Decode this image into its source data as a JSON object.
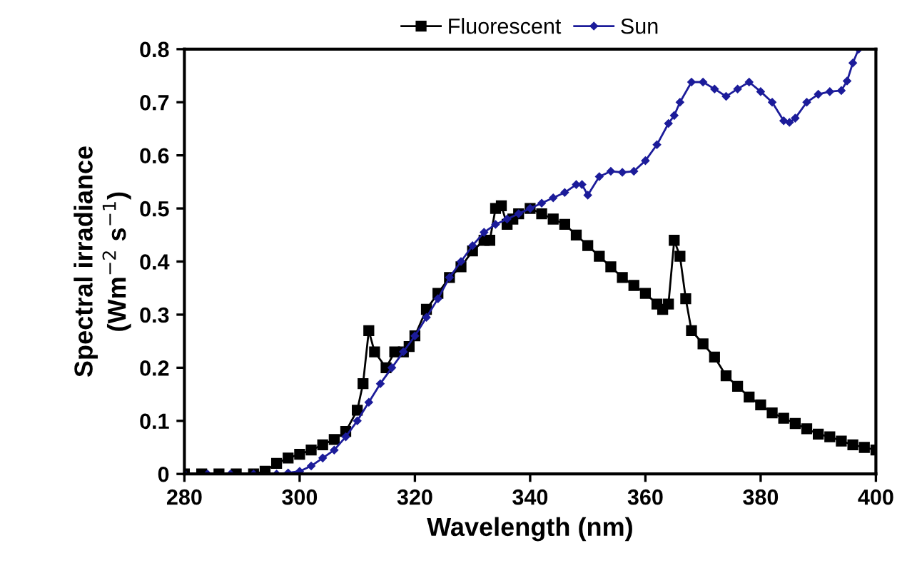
{
  "chart_data": {
    "type": "line",
    "xlabel": "Wavelength (nm)",
    "ylabel": "Spectral irradiance\n(Wm$^{−2}$ s$^{−1}$)",
    "xlim": [
      280,
      400
    ],
    "xticks": [
      280,
      300,
      320,
      340,
      360,
      380,
      400
    ],
    "ylim": [
      0,
      0.8
    ],
    "yticks": [
      0,
      0.1,
      0.2,
      0.3,
      0.4,
      0.5,
      0.6,
      0.7,
      0.8
    ],
    "grid": false,
    "legend": "top",
    "series": [
      {
        "name": "Fluorescent",
        "color": "#000000",
        "marker": "square",
        "x": [
          280,
          283,
          286,
          289,
          292,
          294,
          296,
          298,
          300,
          302,
          304,
          306,
          308,
          310,
          311,
          312,
          313,
          315,
          316.5,
          318,
          319,
          320,
          322,
          324,
          326,
          328,
          330,
          332,
          333,
          334,
          335,
          336,
          337,
          338,
          340,
          342,
          344,
          346,
          348,
          350,
          352,
          354,
          356,
          358,
          360,
          362,
          363,
          364,
          365,
          366,
          367,
          368,
          370,
          372,
          374,
          376,
          378,
          380,
          382,
          384,
          386,
          388,
          390,
          392,
          394,
          396,
          398,
          400
        ],
        "values": [
          0,
          0,
          0,
          0,
          0,
          0.005,
          0.02,
          0.03,
          0.037,
          0.045,
          0.055,
          0.065,
          0.08,
          0.12,
          0.17,
          0.27,
          0.23,
          0.2,
          0.23,
          0.23,
          0.24,
          0.26,
          0.31,
          0.34,
          0.37,
          0.39,
          0.42,
          0.44,
          0.44,
          0.5,
          0.505,
          0.47,
          0.48,
          0.49,
          0.5,
          0.49,
          0.48,
          0.47,
          0.45,
          0.43,
          0.41,
          0.39,
          0.37,
          0.355,
          0.34,
          0.32,
          0.31,
          0.32,
          0.44,
          0.41,
          0.33,
          0.27,
          0.245,
          0.22,
          0.185,
          0.165,
          0.145,
          0.13,
          0.115,
          0.105,
          0.095,
          0.085,
          0.075,
          0.07,
          0.062,
          0.055,
          0.05,
          0.045
        ]
      },
      {
        "name": "Sun",
        "color": "#1c1c9a",
        "marker": "diamond",
        "x": [
          280,
          284,
          288,
          292,
          296,
          298,
          300,
          302,
          304,
          306,
          308,
          310,
          312,
          314,
          316,
          318,
          320,
          322,
          324,
          326,
          328,
          330,
          332,
          334,
          336,
          338,
          340,
          342,
          344,
          346,
          348,
          349,
          350,
          352,
          354,
          356,
          358,
          360,
          362,
          364,
          365,
          366,
          368,
          370,
          372,
          374,
          376,
          378,
          380,
          382,
          384,
          385,
          386,
          388,
          390,
          392,
          394,
          395,
          396,
          397
        ],
        "values": [
          0,
          0,
          0,
          0,
          0,
          0.002,
          0.005,
          0.015,
          0.03,
          0.045,
          0.07,
          0.1,
          0.135,
          0.17,
          0.2,
          0.23,
          0.26,
          0.295,
          0.33,
          0.37,
          0.4,
          0.43,
          0.455,
          0.47,
          0.48,
          0.49,
          0.5,
          0.51,
          0.52,
          0.53,
          0.545,
          0.545,
          0.525,
          0.56,
          0.57,
          0.568,
          0.57,
          0.59,
          0.62,
          0.66,
          0.675,
          0.7,
          0.738,
          0.738,
          0.725,
          0.711,
          0.725,
          0.738,
          0.72,
          0.7,
          0.665,
          0.662,
          0.67,
          0.7,
          0.715,
          0.72,
          0.722,
          0.74,
          0.774,
          0.8
        ]
      }
    ]
  }
}
